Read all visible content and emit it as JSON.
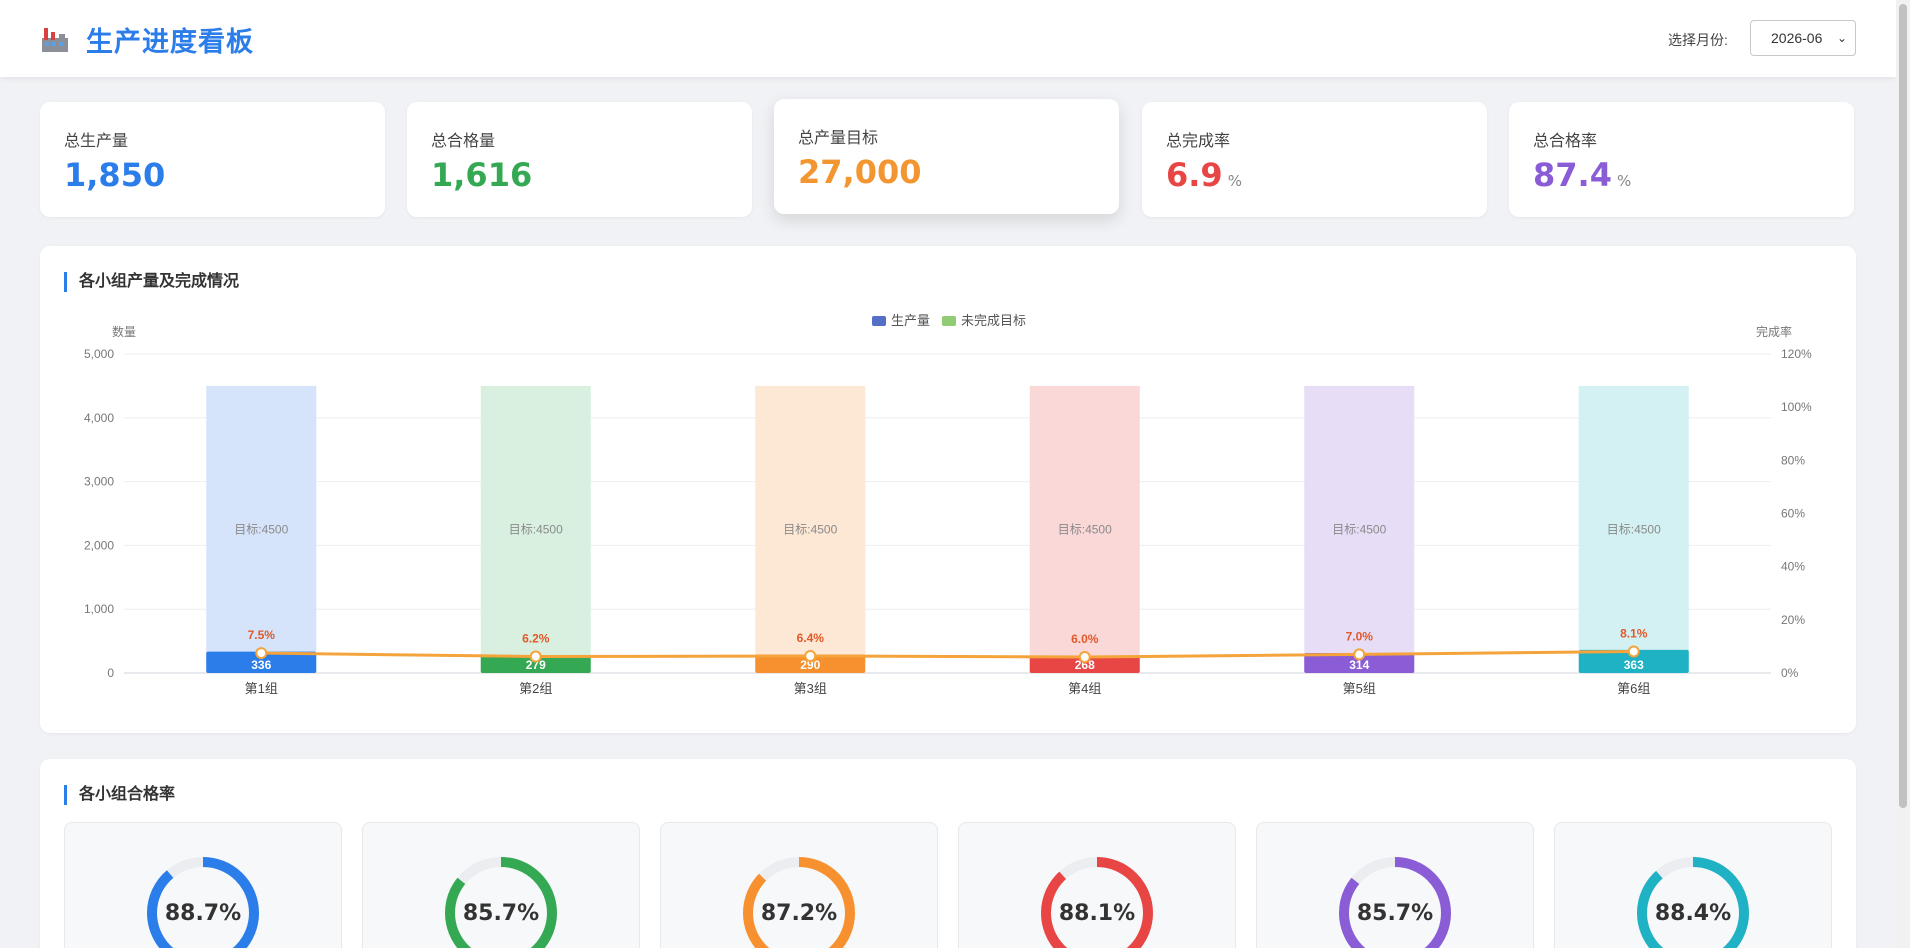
{
  "header": {
    "title": "生产进度看板",
    "month_label": "选择月份:",
    "month_value": "2026-06"
  },
  "kpis": [
    {
      "label": "总生产量",
      "value": "1,850",
      "unit": "",
      "color": "#2b7de9"
    },
    {
      "label": "总合格量",
      "value": "1,616",
      "unit": "",
      "color": "#34a853"
    },
    {
      "label": "总产量目标",
      "value": "27,000",
      "unit": "",
      "color": "#f39530"
    },
    {
      "label": "总完成率",
      "value": "6.9",
      "unit": "%",
      "color": "#e84545"
    },
    {
      "label": "总合格率",
      "value": "87.4",
      "unit": "%",
      "color": "#8a5cd6"
    }
  ],
  "production_panel": {
    "title": "各小组产量及完成情况"
  },
  "quality_panel": {
    "title": "各小组合格率"
  },
  "chart_data": {
    "type": "bar",
    "title": "",
    "legend": [
      {
        "name": "生产量",
        "color": "#5470c6"
      },
      {
        "name": "未完成目标",
        "color": "#91cc75"
      }
    ],
    "legend_position": "top-center",
    "ylabel": "数量",
    "y2label": "完成率",
    "ylim": [
      0,
      5000
    ],
    "yticks": [
      "0",
      "1,000",
      "2,000",
      "3,000",
      "4,000",
      "5,000"
    ],
    "y2lim": [
      0,
      120
    ],
    "y2ticks": [
      "0%",
      "20%",
      "40%",
      "60%",
      "80%",
      "100%",
      "120%"
    ],
    "grid": true,
    "categories": [
      "第1组",
      "第2组",
      "第3组",
      "第4组",
      "第5组",
      "第6组"
    ],
    "target_label": "目标:4500",
    "targets": [
      4500,
      4500,
      4500,
      4500,
      4500,
      4500
    ],
    "series": [
      {
        "name": "生产量",
        "values": [
          336,
          279,
          290,
          268,
          314,
          363
        ]
      },
      {
        "name": "完成率",
        "values": [
          7.5,
          6.2,
          6.4,
          6.0,
          7.0,
          8.1
        ],
        "line_color": "#f5a33b"
      }
    ],
    "bar_labels": [
      "336",
      "279",
      "290",
      "268",
      "314",
      "363"
    ],
    "rate_labels": [
      "7.5%",
      "6.2%",
      "6.4%",
      "6.0%",
      "7.0%",
      "8.1%"
    ],
    "group_colors": [
      "#2b7de9",
      "#34a853",
      "#f7912f",
      "#e84545",
      "#8a5cd6",
      "#1fb1c4"
    ],
    "target_fill_colors": [
      "#d6e4fb",
      "#d9f0e0",
      "#fde7d5",
      "#fad8d7",
      "#e7ddf6",
      "#d3f0f3"
    ]
  },
  "quality": [
    {
      "rate": 88.7,
      "label": "88.7%",
      "color": "#2b7de9"
    },
    {
      "rate": 85.7,
      "label": "85.7%",
      "color": "#34a853"
    },
    {
      "rate": 87.2,
      "label": "87.2%",
      "color": "#f7912f"
    },
    {
      "rate": 88.1,
      "label": "88.1%",
      "color": "#e84545"
    },
    {
      "rate": 85.7,
      "label": "85.7%",
      "color": "#8a5cd6"
    },
    {
      "rate": 88.4,
      "label": "88.4%",
      "color": "#1fb1c4"
    }
  ]
}
